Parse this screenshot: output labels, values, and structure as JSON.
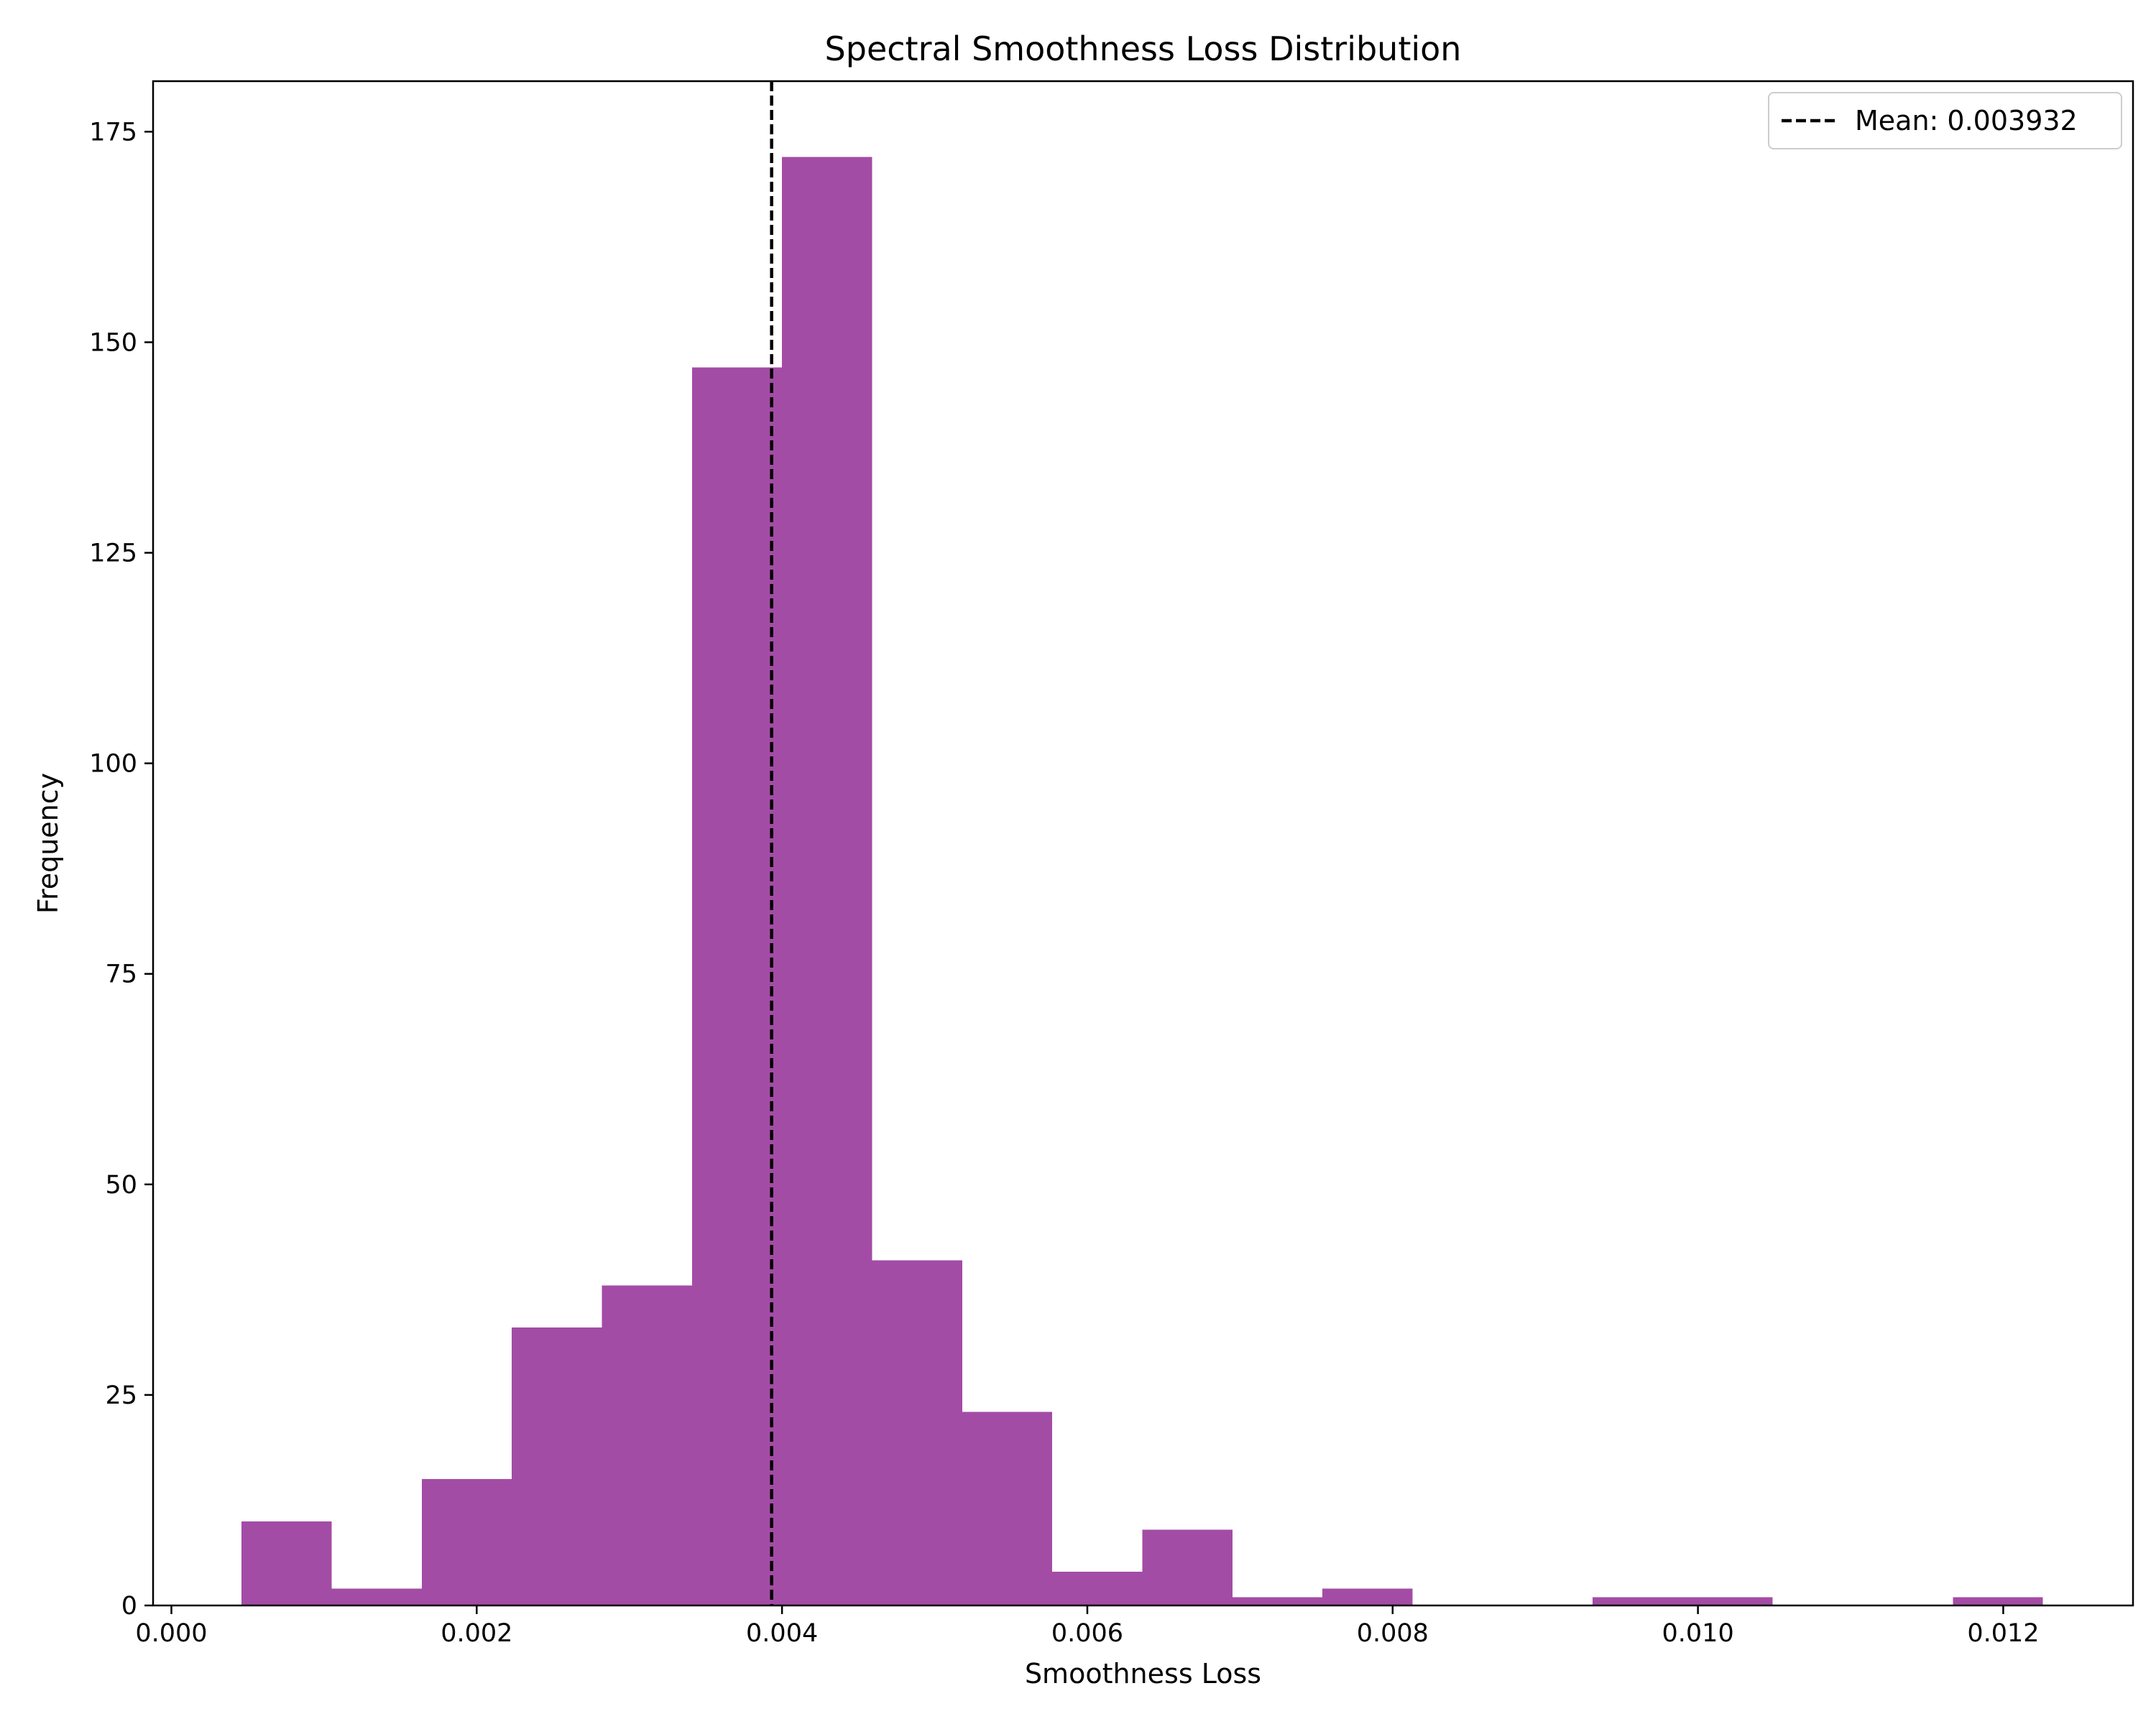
{
  "chart_data": {
    "type": "bar",
    "title": "Spectral Smoothness Loss Distribution",
    "xlabel": "Smoothness Loss",
    "ylabel": "Frequency",
    "xlim": [
      -0.00012,
      0.01285
    ],
    "ylim": [
      0,
      181
    ],
    "xticks": [
      0.0,
      0.002,
      0.004,
      0.006,
      0.008,
      0.01,
      0.012
    ],
    "xtick_labels": [
      "0.000",
      "0.002",
      "0.004",
      "0.006",
      "0.008",
      "0.010",
      "0.012"
    ],
    "yticks": [
      0,
      25,
      50,
      75,
      100,
      125,
      150,
      175
    ],
    "ytick_labels": [
      "0",
      "25",
      "50",
      "75",
      "100",
      "125",
      "150",
      "175"
    ],
    "bin_edges": [
      0.00046,
      0.00105,
      0.00164,
      0.00223,
      0.00282,
      0.00341,
      0.004,
      0.00459,
      0.00518,
      0.00577,
      0.00636,
      0.00695,
      0.00754,
      0.00813,
      0.00872,
      0.00931,
      0.0099,
      0.01049,
      0.01108,
      0.01167,
      0.01226
    ],
    "values": [
      10,
      2,
      15,
      33,
      38,
      147,
      172,
      41,
      23,
      4,
      9,
      1,
      2,
      0,
      0,
      1,
      1,
      0,
      0,
      1
    ],
    "bar_color": "#a34ca5",
    "mean": {
      "value": 0.003932,
      "label": "Mean: 0.003932",
      "line_style": "dashed",
      "color": "#000000"
    },
    "legend_position": "top-right",
    "grid": false
  }
}
